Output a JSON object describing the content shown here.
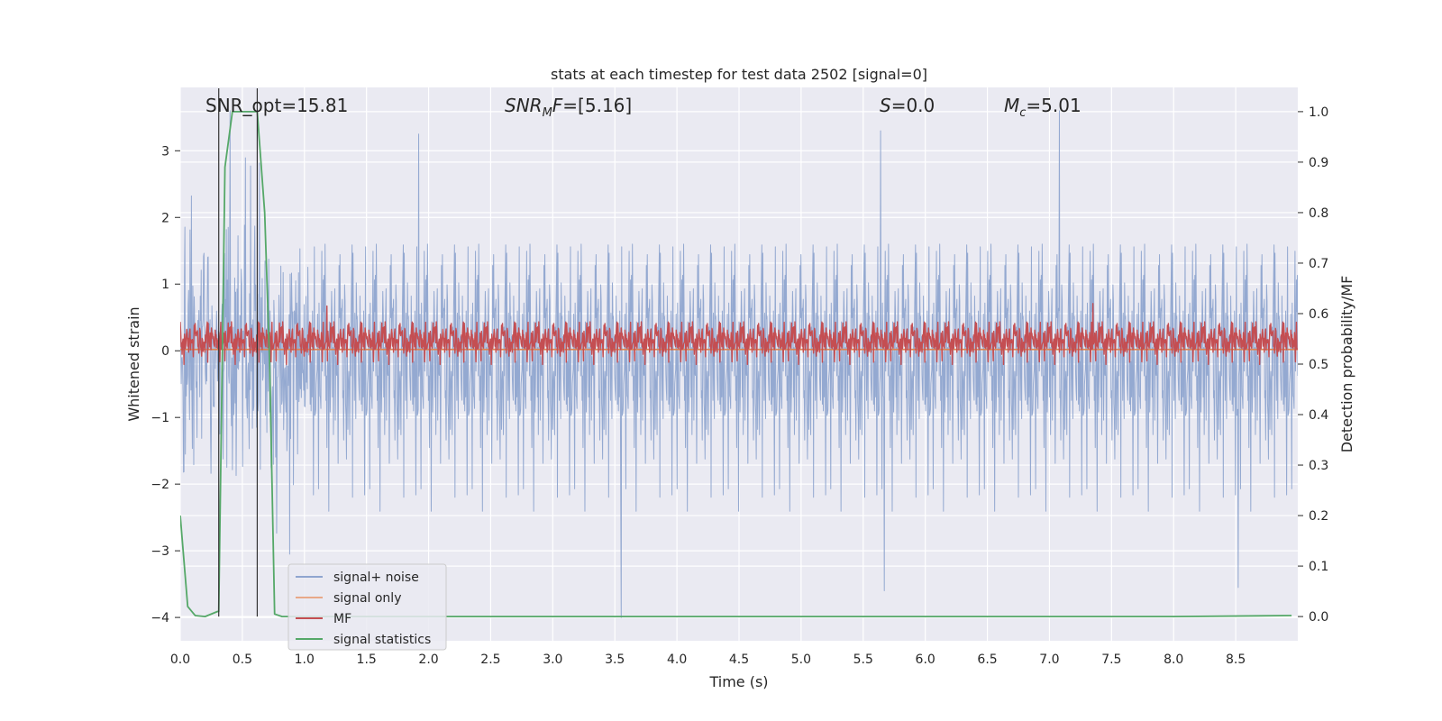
{
  "chart_data": {
    "type": "line",
    "title": "stats at each timestep for test data 2502 [signal=0]",
    "xlabel": "Time (s)",
    "ylabel": "Whitened strain",
    "y2label": "Detection probability/MF",
    "xlim": [
      0.0,
      9.0
    ],
    "ylim": [
      -4.35,
      3.95
    ],
    "y2lim": [
      -0.048,
      1.048
    ],
    "xticks": [
      "0.0",
      "0.5",
      "1.0",
      "1.5",
      "2.0",
      "2.5",
      "3.0",
      "3.5",
      "4.0",
      "4.5",
      "5.0",
      "5.5",
      "6.0",
      "6.5",
      "7.0",
      "7.5",
      "8.0",
      "8.5"
    ],
    "yticks": [
      "3",
      "2",
      "1",
      "0",
      "−1",
      "−2",
      "−3",
      "−4"
    ],
    "y2ticks": [
      "1.0",
      "0.9",
      "0.8",
      "0.7",
      "0.6",
      "0.5",
      "0.4",
      "0.3",
      "0.2",
      "0.1",
      "0.0"
    ],
    "grid": true,
    "legend_position": "lower-left",
    "annotations": {
      "snr_opt": "SNR_opt=15.81",
      "snr_mf_sym": "SNR",
      "snr_mf_sub": "M",
      "snr_mf_rest": "F",
      "snr_mf_val": "=[5.16]",
      "s_sym": "S",
      "s_val": "=0.0",
      "mc_sym": "M",
      "mc_sub": "c",
      "mc_val": "=5.01"
    },
    "markers_x": [
      0.31,
      0.62
    ],
    "series": [
      {
        "name": "signal+ noise",
        "color": "#8fa5cf",
        "axis": "left",
        "kind": "noise",
        "mean": 0.0,
        "std": 0.95,
        "t": [
          0,
          9
        ],
        "spikes": [
          [
            1.92,
            3.25
          ],
          [
            5.64,
            3.3
          ],
          [
            7.08,
            3.6
          ],
          [
            3.55,
            -4.0
          ],
          [
            8.52,
            -3.55
          ],
          [
            5.67,
            -3.6
          ],
          [
            0.88,
            -3.05
          ],
          [
            0.4,
            3.6
          ]
        ]
      },
      {
        "name": "signal only",
        "color": "#dd8452",
        "axis": "left",
        "kind": "const",
        "value": 0.02,
        "t": [
          0,
          9
        ]
      },
      {
        "name": "MF",
        "color": "#c44e52",
        "axis": "right",
        "kind": "noise",
        "mean": 0.55,
        "std": 0.02,
        "t": [
          0,
          9
        ],
        "spikes": [
          [
            1.18,
            0.615
          ],
          [
            7.35,
            0.62
          ]
        ]
      },
      {
        "name": "signal statistics",
        "color": "#55a868",
        "axis": "right",
        "kind": "curve",
        "x": [
          0.0,
          0.06,
          0.12,
          0.2,
          0.3,
          0.31,
          0.36,
          0.42,
          0.47,
          0.55,
          0.62,
          0.68,
          0.72,
          0.76,
          0.82,
          0.9,
          2.0,
          4.0,
          6.0,
          8.0,
          8.95
        ],
        "y": [
          0.2,
          0.02,
          0.002,
          0.0,
          0.01,
          0.01,
          0.89,
          1.0,
          1.0,
          1.0,
          1.0,
          0.8,
          0.5,
          0.005,
          0.0,
          0.0,
          0.0,
          0.0,
          0.0,
          0.0,
          0.002
        ]
      }
    ]
  }
}
